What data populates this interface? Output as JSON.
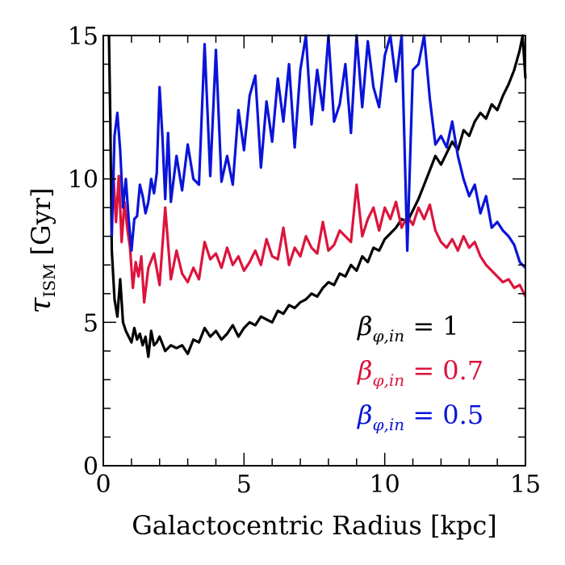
{
  "chart_data": {
    "type": "line",
    "title": "",
    "xlabel": "Galactocentric Radius [kpc]",
    "ylabel": "τ_ISM [Gyr]",
    "ylabel_main": "τ",
    "ylabel_sub": "ISM",
    "ylabel_unit": "[Gyr]",
    "xlim": [
      0,
      15
    ],
    "ylim": [
      0,
      15
    ],
    "xticks": [
      0,
      5,
      10,
      15
    ],
    "yticks": [
      0,
      5,
      10,
      15
    ],
    "xtick_labels": [
      "0",
      "5",
      "10",
      "15"
    ],
    "ytick_labels": [
      "0",
      "5",
      "10",
      "15"
    ],
    "grid": false,
    "legend_placement": "bottom-right",
    "series": [
      {
        "name": "β_φ,in = 1",
        "legend_main": "β",
        "legend_sub": "φ,in",
        "legend_value": " = 1",
        "color": "#000000",
        "x": [
          0.2,
          0.25,
          0.3,
          0.4,
          0.5,
          0.6,
          0.7,
          0.8,
          0.9,
          1.0,
          1.1,
          1.2,
          1.3,
          1.4,
          1.5,
          1.6,
          1.7,
          1.8,
          1.9,
          2.0,
          2.2,
          2.4,
          2.6,
          2.8,
          3.0,
          3.2,
          3.4,
          3.6,
          3.8,
          4.0,
          4.2,
          4.4,
          4.6,
          4.8,
          5.0,
          5.2,
          5.4,
          5.6,
          5.8,
          6.0,
          6.2,
          6.4,
          6.6,
          6.8,
          7.0,
          7.2,
          7.4,
          7.6,
          7.8,
          8.0,
          8.2,
          8.4,
          8.6,
          8.8,
          9.0,
          9.2,
          9.4,
          9.6,
          9.8,
          10.0,
          10.2,
          10.4,
          10.6,
          10.8,
          11.0,
          11.2,
          11.4,
          11.6,
          11.8,
          12.0,
          12.2,
          12.4,
          12.6,
          12.8,
          13.0,
          13.2,
          13.4,
          13.6,
          13.8,
          14.0,
          14.2,
          14.4,
          14.6,
          14.8,
          14.9,
          15.0
        ],
        "values": [
          15.0,
          12.0,
          7.5,
          5.8,
          5.2,
          6.5,
          5.0,
          4.7,
          4.5,
          4.3,
          4.8,
          4.4,
          4.6,
          4.2,
          4.5,
          3.8,
          4.7,
          4.2,
          4.3,
          4.5,
          4.0,
          4.2,
          4.1,
          4.2,
          3.9,
          4.4,
          4.3,
          4.8,
          4.5,
          4.7,
          4.4,
          4.6,
          4.9,
          4.5,
          4.8,
          5.0,
          4.9,
          5.2,
          5.1,
          5.0,
          5.4,
          5.3,
          5.6,
          5.5,
          5.7,
          5.8,
          6.0,
          5.9,
          6.2,
          6.4,
          6.3,
          6.7,
          6.6,
          7.0,
          6.8,
          7.3,
          7.1,
          7.6,
          7.5,
          7.9,
          8.1,
          8.3,
          8.6,
          8.5,
          8.9,
          9.3,
          9.8,
          10.3,
          10.8,
          10.5,
          10.9,
          11.3,
          11.0,
          11.7,
          11.5,
          12.0,
          12.3,
          12.1,
          12.6,
          12.4,
          12.9,
          13.3,
          13.8,
          14.5,
          15.0,
          13.5
        ],
        "line_width": 3.2
      },
      {
        "name": "β_φ,in = 0.7",
        "legend_main": "β",
        "legend_sub": "φ,in",
        "legend_value": " = 0.7",
        "color": "#dc143c",
        "x": [
          0.35,
          0.45,
          0.55,
          0.65,
          0.75,
          0.85,
          0.95,
          1.05,
          1.15,
          1.25,
          1.35,
          1.45,
          1.6,
          1.8,
          2.0,
          2.2,
          2.4,
          2.6,
          2.8,
          3.0,
          3.2,
          3.4,
          3.6,
          3.8,
          4.0,
          4.2,
          4.4,
          4.6,
          4.8,
          5.0,
          5.2,
          5.4,
          5.6,
          5.8,
          6.0,
          6.2,
          6.4,
          6.6,
          6.8,
          7.0,
          7.2,
          7.4,
          7.6,
          7.8,
          8.0,
          8.2,
          8.4,
          8.6,
          8.8,
          9.0,
          9.2,
          9.4,
          9.6,
          9.8,
          10.0,
          10.2,
          10.4,
          10.6,
          10.8,
          11.0,
          11.2,
          11.4,
          11.6,
          11.8,
          12.0,
          12.2,
          12.4,
          12.6,
          12.8,
          13.0,
          13.2,
          13.4,
          13.6,
          13.8,
          14.0,
          14.2,
          14.4,
          14.6,
          14.8,
          15.0
        ],
        "values": [
          10.3,
          8.5,
          10.1,
          7.8,
          9.2,
          8.3,
          7.6,
          6.2,
          7.1,
          6.6,
          7.3,
          5.7,
          6.9,
          7.4,
          6.3,
          9.0,
          6.5,
          7.5,
          6.7,
          6.4,
          6.9,
          6.5,
          7.8,
          7.2,
          7.4,
          6.9,
          7.6,
          7.0,
          7.3,
          6.8,
          7.1,
          7.5,
          7.0,
          7.9,
          7.3,
          7.2,
          8.3,
          7.0,
          7.6,
          7.3,
          8.0,
          7.6,
          7.4,
          8.5,
          7.5,
          7.7,
          8.2,
          8.0,
          7.8,
          9.8,
          8.0,
          8.6,
          9.0,
          8.2,
          9.0,
          8.6,
          9.2,
          8.3,
          8.7,
          8.4,
          9.0,
          8.6,
          9.1,
          8.2,
          7.8,
          7.6,
          7.9,
          7.5,
          8.0,
          7.6,
          7.8,
          7.3,
          7.0,
          6.8,
          6.6,
          6.4,
          6.5,
          6.2,
          6.3,
          5.9
        ],
        "line_width": 3.2
      },
      {
        "name": "β_φ,in = 0.5",
        "legend_main": "β",
        "legend_sub": "φ,in",
        "legend_value": " = 0.5",
        "color": "#0a14d8",
        "x": [
          0.3,
          0.4,
          0.5,
          0.6,
          0.7,
          0.8,
          0.9,
          1.0,
          1.1,
          1.2,
          1.3,
          1.4,
          1.5,
          1.6,
          1.7,
          1.8,
          1.9,
          2.0,
          2.1,
          2.2,
          2.3,
          2.4,
          2.6,
          2.8,
          3.0,
          3.2,
          3.4,
          3.6,
          3.8,
          4.0,
          4.2,
          4.4,
          4.6,
          4.8,
          5.0,
          5.2,
          5.4,
          5.6,
          5.8,
          6.0,
          6.2,
          6.4,
          6.6,
          6.8,
          7.0,
          7.2,
          7.4,
          7.6,
          7.8,
          8.0,
          8.2,
          8.4,
          8.6,
          8.8,
          9.0,
          9.2,
          9.4,
          9.6,
          9.8,
          10.0,
          10.2,
          10.4,
          10.6,
          10.8,
          11.0,
          11.2,
          11.4,
          11.6,
          11.8,
          12.0,
          12.2,
          12.4,
          12.6,
          12.8,
          13.0,
          13.2,
          13.4,
          13.6,
          13.8,
          14.0,
          14.2,
          14.4,
          14.6,
          14.8,
          15.0
        ],
        "values": [
          8.0,
          11.5,
          12.3,
          11.0,
          9.0,
          10.0,
          8.6,
          7.5,
          8.6,
          8.7,
          9.8,
          9.4,
          8.8,
          9.2,
          10.0,
          9.5,
          10.2,
          13.2,
          11.5,
          9.3,
          11.6,
          9.2,
          10.8,
          9.6,
          11.2,
          10.0,
          9.8,
          14.7,
          10.1,
          14.5,
          9.9,
          10.8,
          9.8,
          12.4,
          11.0,
          12.9,
          13.6,
          10.4,
          12.7,
          11.3,
          13.5,
          12.0,
          14.0,
          11.1,
          13.8,
          15.0,
          11.9,
          13.8,
          12.4,
          15.0,
          12.0,
          12.6,
          14.0,
          11.6,
          15.0,
          12.5,
          14.8,
          13.2,
          12.5,
          14.3,
          15.0,
          13.4,
          15.0,
          7.5,
          13.8,
          14.0,
          15.0,
          12.8,
          11.2,
          11.5,
          11.1,
          12.0,
          10.8,
          10.0,
          9.4,
          9.8,
          8.8,
          9.4,
          8.3,
          8.5,
          8.2,
          8.0,
          7.7,
          7.1,
          6.9
        ],
        "line_width": 3.2
      }
    ]
  }
}
